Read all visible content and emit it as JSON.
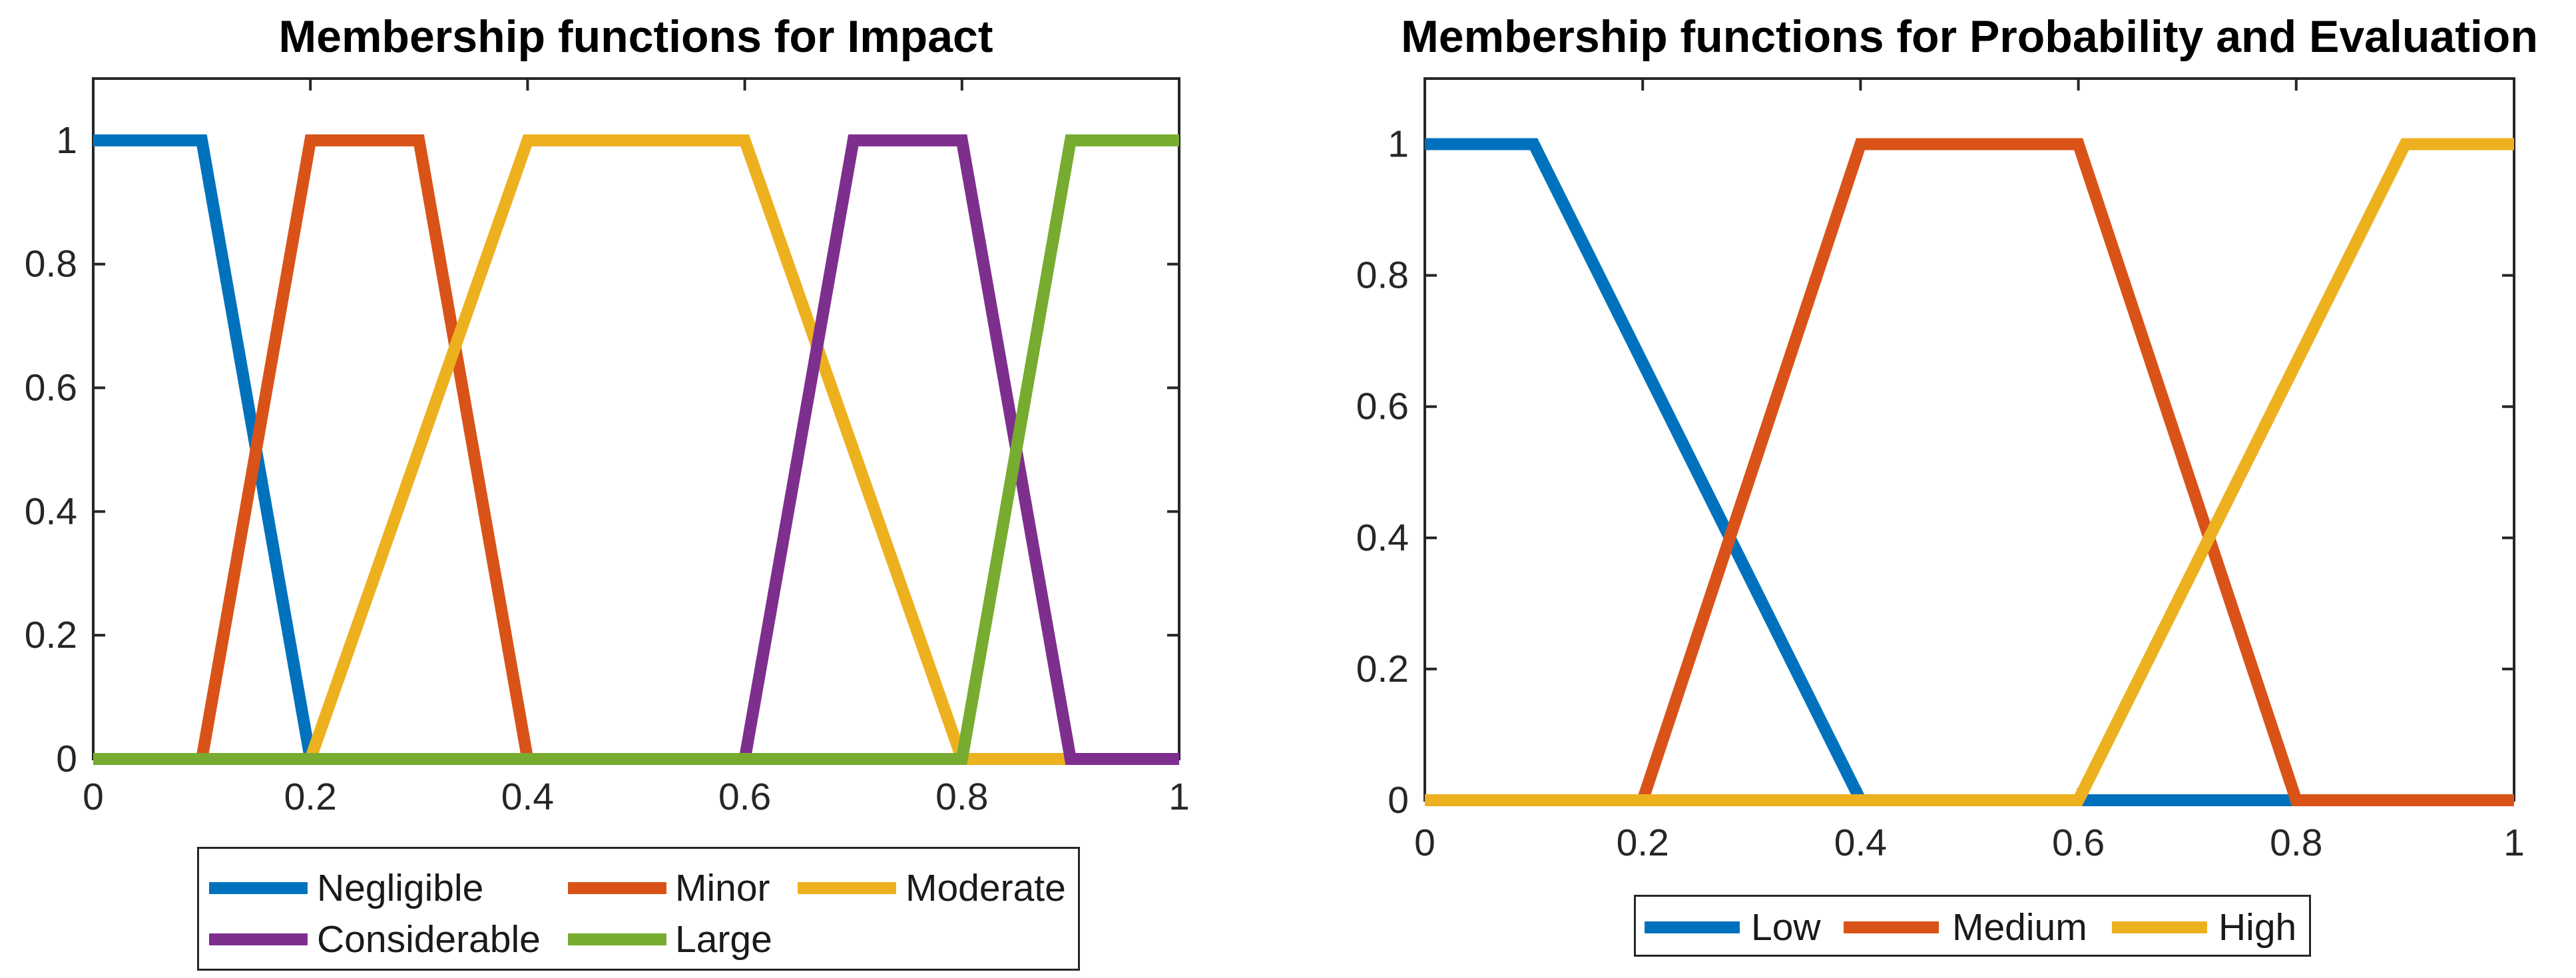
{
  "figure": {
    "background": "#ffffff",
    "axis_color": "#262626",
    "tick_label_color": "#262626",
    "title_color": "#000000",
    "legend_border_color": "#262626"
  },
  "chart_data": [
    {
      "type": "line",
      "title": "Membership functions for Impact",
      "xlabel": "",
      "ylabel": "",
      "xlim": [
        0,
        1
      ],
      "ylim": [
        0,
        1.1
      ],
      "grid": false,
      "xticks": [
        0,
        0.2,
        0.4,
        0.6,
        0.8,
        1
      ],
      "xtick_labels": [
        "0",
        "0.2",
        "0.4",
        "0.6",
        "0.8",
        "1"
      ],
      "yticks": [
        0,
        0.2,
        0.4,
        0.6,
        0.8,
        1
      ],
      "ytick_labels": [
        "0",
        "0.2",
        "0.4",
        "0.6",
        "0.8",
        "1"
      ],
      "legend_position": "below-center",
      "series": [
        {
          "name": "Negligible",
          "color": "#0072BD",
          "x": [
            0,
            0.1,
            0.2,
            1
          ],
          "y": [
            1,
            1,
            0,
            0
          ]
        },
        {
          "name": "Minor",
          "color": "#D95319",
          "x": [
            0,
            0.1,
            0.2,
            0.3,
            0.4,
            1
          ],
          "y": [
            0,
            0,
            1,
            1,
            0,
            0
          ]
        },
        {
          "name": "Moderate",
          "color": "#EDB120",
          "x": [
            0,
            0.2,
            0.4,
            0.6,
            0.8,
            1
          ],
          "y": [
            0,
            0,
            1,
            1,
            0,
            0
          ]
        },
        {
          "name": "Considerable",
          "color": "#7E2F8E",
          "x": [
            0,
            0.6,
            0.7,
            0.8,
            0.9,
            1
          ],
          "y": [
            0,
            0,
            1,
            1,
            0,
            0
          ]
        },
        {
          "name": "Large",
          "color": "#77AC30",
          "x": [
            0,
            0.8,
            0.9,
            1
          ],
          "y": [
            0,
            0,
            1,
            1
          ]
        }
      ],
      "legend_rows": [
        [
          "Negligible",
          "Minor",
          "Moderate"
        ],
        [
          "Considerable",
          "Large"
        ]
      ]
    },
    {
      "type": "line",
      "title": "Membership functions for Probability and Evaluation",
      "xlabel": "",
      "ylabel": "",
      "xlim": [
        0,
        1
      ],
      "ylim": [
        0,
        1.1
      ],
      "grid": false,
      "xticks": [
        0,
        0.2,
        0.4,
        0.6,
        0.8,
        1
      ],
      "xtick_labels": [
        "0",
        "0.2",
        "0.4",
        "0.6",
        "0.8",
        "1"
      ],
      "yticks": [
        0,
        0.2,
        0.4,
        0.6,
        0.8,
        1
      ],
      "ytick_labels": [
        "0",
        "0.2",
        "0.4",
        "0.6",
        "0.8",
        "1"
      ],
      "legend_position": "below-center",
      "series": [
        {
          "name": "Low",
          "color": "#0072BD",
          "x": [
            0,
            0.1,
            0.4,
            1
          ],
          "y": [
            1,
            1,
            0,
            0
          ]
        },
        {
          "name": "Medium",
          "color": "#D95319",
          "x": [
            0,
            0.2,
            0.4,
            0.6,
            0.8,
            1
          ],
          "y": [
            0,
            0,
            1,
            1,
            0,
            0
          ]
        },
        {
          "name": "High",
          "color": "#EDB120",
          "x": [
            0,
            0.6,
            0.9,
            1
          ],
          "y": [
            0,
            0,
            1,
            1
          ]
        }
      ],
      "legend_rows": [
        [
          "Low",
          "Medium",
          "High"
        ]
      ]
    }
  ]
}
